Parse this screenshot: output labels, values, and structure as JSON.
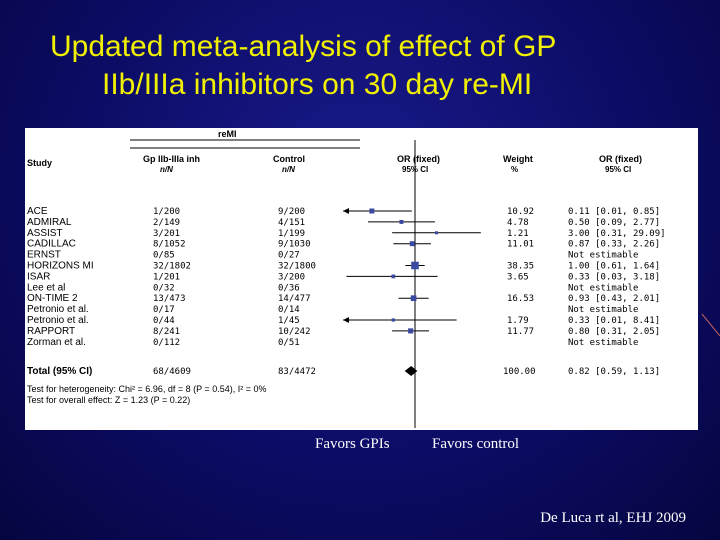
{
  "slide": {
    "title_line1": "Updated meta-analysis of effect of GP",
    "title_line2": "IIb/IIIa inhibitors on 30 day re-MI",
    "favors_left": "Favors GPIs",
    "favors_right": "Favors control",
    "citation": "De Luca rt al,  EHJ 2009"
  },
  "chart_data": {
    "type": "forest",
    "outcome": "reMI",
    "headers": {
      "study": "Study",
      "treat": "Gp IIb-IIIa inh",
      "treat_sub": "n/N",
      "control": "Control",
      "control_sub": "n/N",
      "or_fixed": "OR (fixed)",
      "or_ci": "95% CI",
      "weight": "Weight",
      "weight_unit": "%",
      "or_fixed2": "OR (fixed)",
      "or_ci2": "95% CI"
    },
    "x_scale": "log",
    "x_reference": 1,
    "studies": [
      {
        "name": "ACE",
        "treat": "1/200",
        "control": "9/200",
        "weight": "10.92",
        "or_text": "0.11 [0.01, 0.85]",
        "or": 0.11,
        "lo": 0.01,
        "hi": 0.85
      },
      {
        "name": "ADMIRAL",
        "treat": "2/149",
        "control": "4/151",
        "weight": "4.78",
        "or_text": "0.50 [0.09, 2.77]",
        "or": 0.5,
        "lo": 0.09,
        "hi": 2.77
      },
      {
        "name": "ASSIST",
        "treat": "3/201",
        "control": "1/199",
        "weight": "1.21",
        "or_text": "3.00 [0.31, 29.09]",
        "or": 3.0,
        "lo": 0.31,
        "hi": 29.09
      },
      {
        "name": "CADILLAC",
        "treat": "8/1052",
        "control": "9/1030",
        "weight": "11.01",
        "or_text": "0.87 [0.33, 2.26]",
        "or": 0.87,
        "lo": 0.33,
        "hi": 2.26
      },
      {
        "name": "ERNST",
        "treat": "0/85",
        "control": "0/27",
        "weight": "",
        "or_text": "Not estimable",
        "or": null,
        "lo": null,
        "hi": null
      },
      {
        "name": "HORIZONS MI",
        "treat": "32/1802",
        "control": "32/1800",
        "weight": "38.35",
        "or_text": "1.00 [0.61, 1.64]",
        "or": 1.0,
        "lo": 0.61,
        "hi": 1.64
      },
      {
        "name": "ISAR",
        "treat": "1/201",
        "control": "3/200",
        "weight": "3.65",
        "or_text": "0.33 [0.03, 3.18]",
        "or": 0.33,
        "lo": 0.03,
        "hi": 3.18
      },
      {
        "name": "Lee et al",
        "treat": "0/32",
        "control": "0/36",
        "weight": "",
        "or_text": "Not estimable",
        "or": null,
        "lo": null,
        "hi": null
      },
      {
        "name": "ON-TIME 2",
        "treat": "13/473",
        "control": "14/477",
        "weight": "16.53",
        "or_text": "0.93 [0.43, 2.01]",
        "or": 0.93,
        "lo": 0.43,
        "hi": 2.01
      },
      {
        "name": "Petronio et al.",
        "treat": "0/17",
        "control": "0/14",
        "weight": "",
        "or_text": "Not estimable",
        "or": null,
        "lo": null,
        "hi": null
      },
      {
        "name": "Petronio et al.",
        "treat": "0/44",
        "control": "1/45",
        "weight": "1.79",
        "or_text": "0.33 [0.01, 8.41]",
        "or": 0.33,
        "lo": 0.01,
        "hi": 8.41
      },
      {
        "name": "RAPPORT",
        "treat": "8/241",
        "control": "10/242",
        "weight": "11.77",
        "or_text": "0.80 [0.31, 2.05]",
        "or": 0.8,
        "lo": 0.31,
        "hi": 2.05
      },
      {
        "name": "Zorman et al.",
        "treat": "0/112",
        "control": "0/51",
        "weight": "",
        "or_text": "Not estimable",
        "or": null,
        "lo": null,
        "hi": null
      }
    ],
    "total": {
      "name": "Total (95% CI)",
      "treat": "68/4609",
      "control": "83/4472",
      "weight": "100.00",
      "or_text": "0.82 [0.59, 1.13]",
      "or": 0.82,
      "lo": 0.59,
      "hi": 1.13
    },
    "heterogeneity": "Test for heterogeneity: Chi² = 6.96, df = 8 (P = 0.54), I² = 0%",
    "overall_effect": "Test for overall effect: Z = 1.23 (P = 0.22)"
  }
}
